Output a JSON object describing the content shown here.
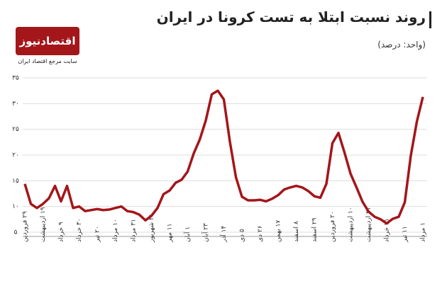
{
  "chart_data": {
    "type": "line",
    "title": "روند نسبت ابتلا به تست کرونا در ایران",
    "subtitle": "(واحد: درصد)",
    "brand": "اقتصادنیوز",
    "brand_tagline": "سایت مرجع اقتصاد ایران",
    "categories": [
      "۲۹ فروردین",
      null,
      null,
      "۱۹ اردیبهشت",
      null,
      null,
      "۹ خرداد",
      null,
      null,
      "۳۰ خرداد",
      null,
      null,
      "۲۰ تیر",
      null,
      null,
      "۱۰ مرداد",
      null,
      null,
      "۳۱ مرداد",
      null,
      null,
      "۲۱ شهریور",
      null,
      null,
      "۱۱ مهر",
      null,
      null,
      "۱ آبان",
      null,
      null,
      "۲۳ آبان",
      null,
      null,
      "۱۴ آذر",
      null,
      null,
      "۵ دی",
      null,
      null,
      "۲۶ دی",
      null,
      null,
      "۱۷ بهمن",
      null,
      null,
      "۸ اسفند",
      null,
      null,
      "۲۹ اسفند",
      null,
      null,
      "۲۰ فروردین",
      null,
      null,
      "۱۰ اردیبهشت",
      null,
      null,
      "۳۱ اردیبهشت",
      null,
      null,
      "۲۱ خرداد",
      null,
      null,
      "۱۱ تیر",
      null,
      null,
      "۱ مرداد"
    ],
    "series": [
      {
        "color": "#a3161a",
        "values": [
          14.4,
          10.5,
          9.7,
          10.5,
          11.6,
          14,
          11,
          14,
          9.7,
          10,
          9.1,
          9.3,
          9.5,
          9.3,
          9.4,
          9.7,
          10,
          9.1,
          8.9,
          8.4,
          7.3,
          8.2,
          9.7,
          12.4,
          13.1,
          14.6,
          15.2,
          16.8,
          20.3,
          23,
          26.7,
          31.8,
          32.5,
          30.8,
          22.6,
          15.7,
          11.9,
          11.2,
          11.2,
          11.3,
          11,
          11.5,
          12.2,
          13.3,
          13.7,
          14,
          13.7,
          13,
          12,
          11.7,
          14.4,
          22.3,
          24.3,
          20.5,
          16.4,
          13.7,
          10.9,
          9,
          8,
          7.5,
          6.7,
          7.6,
          8,
          10.8,
          19.9,
          26.5,
          31.3
        ]
      }
    ],
    "ylim": [
      5,
      35
    ],
    "yticks": [
      {
        "value": 5,
        "label": "۵"
      },
      {
        "value": 10,
        "label": "۱۰"
      },
      {
        "value": 15,
        "label": "۱۵"
      },
      {
        "value": 20,
        "label": "۲۰"
      },
      {
        "value": 25,
        "label": "۲۵"
      },
      {
        "value": 30,
        "label": "۳۰"
      },
      {
        "value": 35,
        "label": "۳۵"
      }
    ],
    "grid": true
  }
}
